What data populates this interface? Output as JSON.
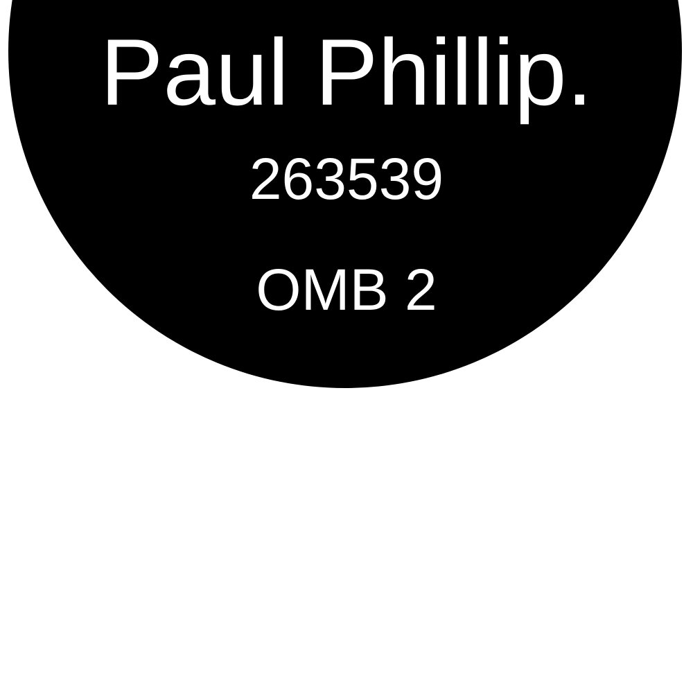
{
  "badge": {
    "name": "Paul Phillip.",
    "number": "263539",
    "code": "OMB 2",
    "background_color": "#000000",
    "text_color": "#ffffff"
  }
}
